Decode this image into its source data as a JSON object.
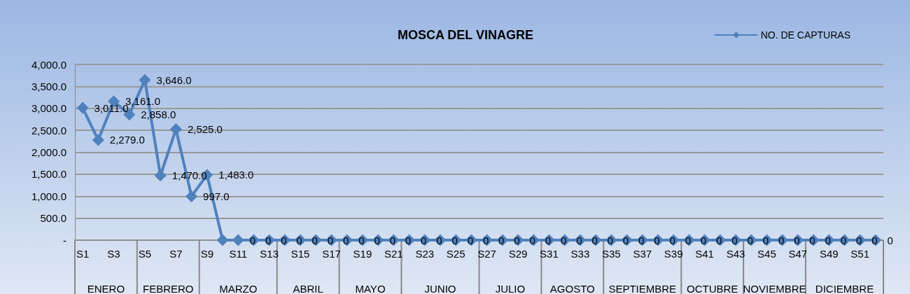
{
  "chart_data": {
    "type": "line",
    "title": "MOSCA DEL VINAGRE",
    "categories": [
      "S1",
      null,
      "S3",
      null,
      "S5",
      null,
      "S7",
      null,
      "S9",
      null,
      "S11",
      null,
      "S13",
      null,
      "S15",
      null,
      "S17",
      null,
      "S19",
      null,
      "S21",
      null,
      "S23",
      null,
      "S25",
      null,
      "S27",
      null,
      "S29",
      null,
      "S31",
      null,
      "S33",
      null,
      "S35",
      null,
      "S37",
      null,
      "S39",
      null,
      "S41",
      null,
      "S43",
      null,
      "S45",
      null,
      "S47",
      null,
      "S49",
      null,
      "S51",
      null
    ],
    "series": [
      {
        "name": "NO. DE CAPTURAS",
        "color": "#4f81bd",
        "values": [
          3011,
          2279,
          3161,
          2858,
          3646,
          1470,
          2525,
          997,
          1483,
          0,
          0,
          0,
          0,
          0,
          0,
          0,
          0,
          0,
          0,
          0,
          0,
          0,
          0,
          0,
          0,
          0,
          0,
          0,
          0,
          0,
          0,
          0,
          0,
          0,
          0,
          0,
          0,
          0,
          0,
          0,
          0,
          0,
          0,
          0,
          0,
          0,
          0,
          0,
          0,
          0,
          0,
          0
        ],
        "value_labels": [
          "3,011.0",
          "2,279.0",
          "3,161.0",
          "2,858.0",
          "3,646.0",
          "1,470.0",
          "2,525.0",
          "997.0",
          "1,483.0",
          null,
          "0",
          "0",
          "0",
          "0",
          "0",
          "0",
          "0",
          "0",
          "0",
          "0",
          "0",
          "0",
          "0",
          "0",
          "0",
          "0",
          "0",
          "0",
          "0",
          "0",
          "0",
          "0",
          "0",
          "0",
          "0",
          "0",
          "0",
          "0",
          "0",
          "0",
          "0",
          "0",
          "0",
          "0",
          "0",
          "0",
          "0",
          "0",
          "0",
          "0",
          "0",
          "0"
        ]
      }
    ],
    "annotations": [
      "ENERO",
      "FEBRERO",
      "MARZO",
      "ABRIL",
      "MAYO",
      "JUNIO",
      "JULIO",
      "AGOSTO",
      "SEPTIEMBRE",
      "OCTUBRE",
      "NOVIEMBRE",
      "DICIEMBRE"
    ],
    "ylim": [
      0,
      4000
    ],
    "yticks": [
      {
        "value": 0,
        "label": "-"
      },
      {
        "value": 500,
        "label": "500.0"
      },
      {
        "value": 1000,
        "label": "1,000.0"
      },
      {
        "value": 1500,
        "label": "1,500.0"
      },
      {
        "value": 2000,
        "label": "2,000.0"
      },
      {
        "value": 2500,
        "label": "2,500.0"
      },
      {
        "value": 3000,
        "label": "3,000.0"
      },
      {
        "value": 3500,
        "label": "3,500.0"
      },
      {
        "value": 4000,
        "label": "4,000.0"
      }
    ],
    "grid": "y",
    "legend": "top right",
    "marker": "diamond",
    "line_style": "solid"
  }
}
